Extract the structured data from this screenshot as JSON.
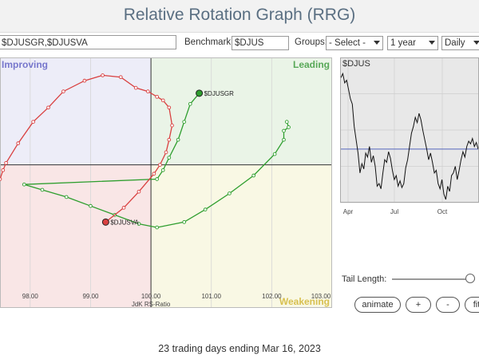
{
  "title": "Relative Rotation Graph (RRG)",
  "controls": {
    "symbols_value": "$DJUSGR,$DJUSVA",
    "benchmark_label": "Benchmark:",
    "benchmark_value": "$DJUS",
    "groups_label": "Groups:",
    "groups_value": "- Select -",
    "period_value": "1 year",
    "frequency_value": "Daily"
  },
  "chart_data": [
    {
      "type": "scatter",
      "title": "",
      "xlabel": "JdK RS-Ratio",
      "ylabel": "",
      "xlim": [
        97.5,
        103.0
      ],
      "ylim": [
        96.0,
        103.0
      ],
      "x_ticks": [
        "98.00",
        "99.00",
        "100.00",
        "101.00",
        "102.00",
        "103.00"
      ],
      "quadrants": {
        "top_left": "Improving",
        "top_right": "Leading",
        "bottom_right": "Weakening"
      },
      "quadrant_colors": {
        "top_left": "#ededf8",
        "top_right": "#eaf4e7",
        "bottom_left": "#f9e6e6",
        "bottom_right": "#f9f8e4"
      },
      "series": [
        {
          "name": "$DJUSGR",
          "color": "#2e9e2e",
          "points": [
            [
              102.25,
              101.2
            ],
            [
              102.28,
              101.05
            ],
            [
              102.2,
              100.95
            ],
            [
              102.2,
              100.7
            ],
            [
              102.05,
              100.3
            ],
            [
              101.7,
              99.7
            ],
            [
              101.3,
              99.2
            ],
            [
              100.9,
              98.75
            ],
            [
              100.55,
              98.4
            ],
            [
              100.1,
              98.25
            ],
            [
              99.8,
              98.35
            ],
            [
              99.4,
              98.6
            ],
            [
              99.0,
              98.85
            ],
            [
              98.6,
              99.1
            ],
            [
              98.2,
              99.3
            ],
            [
              97.9,
              99.45
            ],
            [
              100.1,
              99.6
            ],
            [
              100.2,
              99.85
            ],
            [
              100.3,
              100.2
            ],
            [
              100.45,
              100.7
            ],
            [
              100.55,
              101.2
            ],
            [
              100.65,
              101.7
            ],
            [
              100.8,
              102.0
            ]
          ]
        },
        {
          "name": "$DJUSVA",
          "color": "#d94040",
          "points": [
            [
              97.5,
              99.6
            ],
            [
              97.55,
              99.85
            ],
            [
              97.6,
              100.05
            ],
            [
              97.8,
              100.6
            ],
            [
              98.05,
              101.2
            ],
            [
              98.3,
              101.6
            ],
            [
              98.55,
              102.05
            ],
            [
              98.9,
              102.35
            ],
            [
              99.2,
              102.5
            ],
            [
              99.5,
              102.45
            ],
            [
              99.75,
              102.15
            ],
            [
              99.95,
              102.05
            ],
            [
              100.1,
              101.9
            ],
            [
              100.2,
              101.8
            ],
            [
              100.3,
              101.6
            ],
            [
              100.35,
              101.1
            ],
            [
              100.3,
              100.7
            ],
            [
              100.25,
              100.35
            ],
            [
              100.15,
              100.0
            ],
            [
              100.05,
              99.75
            ],
            [
              99.8,
              99.25
            ],
            [
              99.55,
              98.8
            ],
            [
              99.25,
              98.4
            ]
          ]
        }
      ]
    },
    {
      "type": "line",
      "title": "$DJUS",
      "x_ticks": [
        "Apr",
        "Jul",
        "Oct"
      ],
      "color": "#111111",
      "baseline": 0.38,
      "values": [
        0.92,
        0.95,
        0.88,
        0.9,
        0.83,
        0.76,
        0.72,
        0.55,
        0.45,
        0.35,
        0.2,
        0.27,
        0.23,
        0.35,
        0.32,
        0.4,
        0.28,
        0.33,
        0.25,
        0.1,
        0.12,
        0.08,
        0.2,
        0.3,
        0.28,
        0.36,
        0.31,
        0.22,
        0.15,
        0.18,
        0.1,
        0.14,
        0.09,
        0.12,
        0.24,
        0.3,
        0.4,
        0.5,
        0.55,
        0.62,
        0.58,
        0.65,
        0.6,
        0.52,
        0.45,
        0.38,
        0.3,
        0.35,
        0.28,
        0.2,
        0.22,
        0.12,
        0.08,
        0.15,
        0.04,
        0.0,
        0.1,
        0.06,
        0.18,
        0.2,
        0.25,
        0.15,
        0.22,
        0.3,
        0.36,
        0.32,
        0.4,
        0.44,
        0.42,
        0.46,
        0.4,
        0.43,
        0.38
      ]
    }
  ],
  "tail": {
    "label": "Tail Length:",
    "level": 1.0
  },
  "buttons": {
    "animate": "animate",
    "plus": "+",
    "minus": "-",
    "fit": "fit"
  },
  "footer": "23 trading days ending Mar 16, 2023"
}
